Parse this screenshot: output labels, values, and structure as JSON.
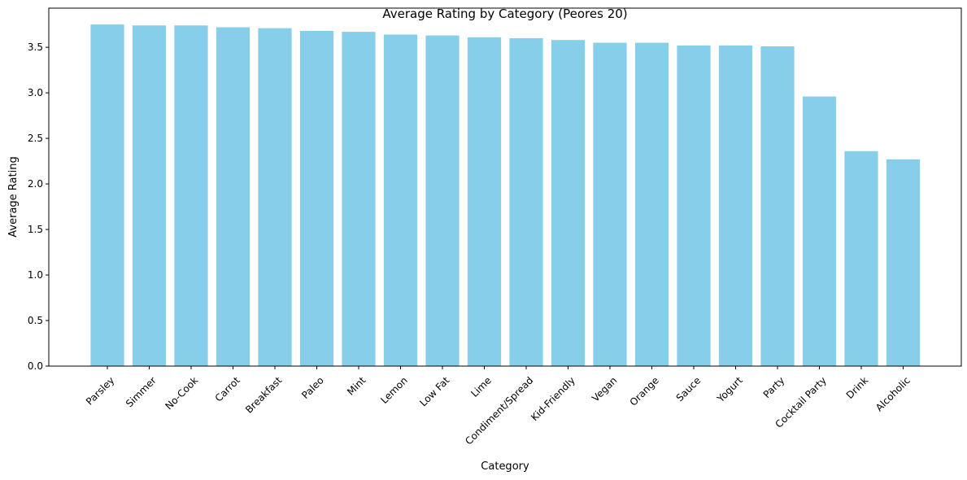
{
  "chart_data": {
    "type": "bar",
    "title": "Average Rating by Category (Peores 20)",
    "xlabel": "Category",
    "ylabel": "Average Rating",
    "ylim": [
      0,
      3.93
    ],
    "yticks": [
      "0.0",
      "0.5",
      "1.0",
      "1.5",
      "2.0",
      "2.5",
      "3.0",
      "3.5"
    ],
    "grid": false,
    "bar_color": "#87CEEB",
    "categories": [
      "Parsley",
      "Simmer",
      "No-Cook",
      "Carrot",
      "Breakfast",
      "Paleo",
      "Mint",
      "Lemon",
      "Low Fat",
      "Lime",
      "Condiment/Spread",
      "Kid-Friendly",
      "Vegan",
      "Orange",
      "Sauce",
      "Yogurt",
      "Party",
      "Cocktail Party",
      "Drink",
      "Alcoholic"
    ],
    "values": [
      3.75,
      3.74,
      3.74,
      3.72,
      3.71,
      3.68,
      3.67,
      3.64,
      3.63,
      3.61,
      3.6,
      3.58,
      3.55,
      3.55,
      3.52,
      3.52,
      3.51,
      2.96,
      2.36,
      2.27
    ]
  }
}
